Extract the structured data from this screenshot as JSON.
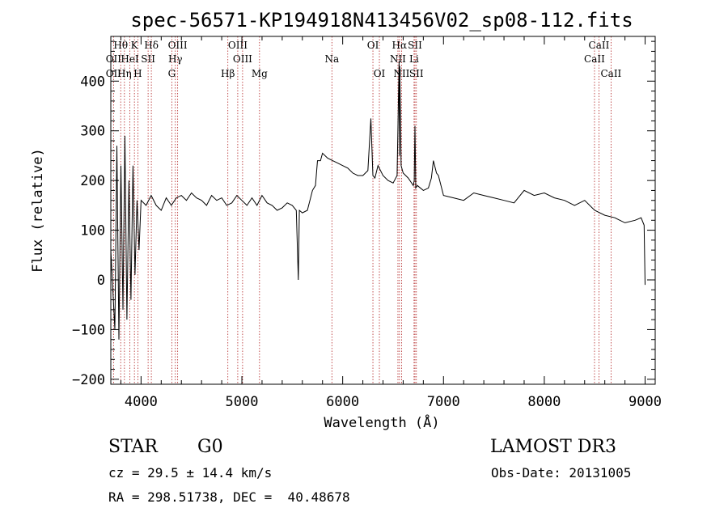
{
  "chart_data": {
    "type": "line",
    "title": "spec-56571-KP194918N413456V02_sp08-112.fits",
    "xlabel": "Wavelength (Å)",
    "ylabel": "Flux (relative)",
    "xlim": [
      3700,
      9100
    ],
    "ylim": [
      -210,
      490
    ],
    "x_ticks": [
      4000,
      5000,
      6000,
      7000,
      8000,
      9000
    ],
    "y_ticks": [
      -200,
      -100,
      0,
      100,
      200,
      300,
      400
    ],
    "grid": false,
    "series": [
      {
        "x": [
          3700,
          3740,
          3760,
          3780,
          3800,
          3820,
          3840,
          3860,
          3880,
          3900,
          3920,
          3940,
          3960,
          3980,
          4000,
          4050,
          4100,
          4150,
          4200,
          4250,
          4300,
          4350,
          4400,
          4450,
          4500,
          4550,
          4600,
          4650,
          4700,
          4750,
          4800,
          4850,
          4900,
          4950,
          5000,
          5050,
          5100,
          5150,
          5200,
          5250,
          5300,
          5350,
          5400,
          5450,
          5500,
          5540,
          5560,
          5570,
          5600,
          5650,
          5700,
          5730,
          5750,
          5780,
          5800,
          5850,
          5900,
          5950,
          6000,
          6050,
          6100,
          6150,
          6200,
          6250,
          6280,
          6300,
          6320,
          6350,
          6400,
          6450,
          6500,
          6540,
          6560,
          6563,
          6566,
          6580,
          6600,
          6650,
          6700,
          6710,
          6717,
          6725,
          6740,
          6800,
          6850,
          6880,
          6900,
          6930,
          6950,
          7000,
          7100,
          7200,
          7300,
          7400,
          7500,
          7600,
          7700,
          7800,
          7900,
          8000,
          8100,
          8200,
          8300,
          8400,
          8500,
          8600,
          8700,
          8800,
          8900,
          8960,
          8990,
          9000
        ],
        "values": [
          60,
          -100,
          270,
          -120,
          230,
          -60,
          290,
          -80,
          200,
          -40,
          230,
          10,
          160,
          60,
          160,
          150,
          170,
          150,
          140,
          165,
          150,
          165,
          170,
          160,
          175,
          165,
          160,
          150,
          170,
          160,
          165,
          150,
          155,
          170,
          160,
          150,
          165,
          150,
          170,
          155,
          150,
          140,
          145,
          155,
          150,
          140,
          0,
          140,
          135,
          140,
          180,
          190,
          240,
          240,
          255,
          245,
          240,
          235,
          230,
          225,
          215,
          210,
          210,
          220,
          325,
          210,
          205,
          230,
          210,
          200,
          195,
          210,
          440,
          250,
          430,
          230,
          215,
          205,
          190,
          200,
          310,
          185,
          190,
          180,
          185,
          205,
          240,
          215,
          210,
          170,
          165,
          160,
          175,
          170,
          165,
          160,
          155,
          180,
          170,
          175,
          165,
          160,
          150,
          160,
          140,
          130,
          125,
          115,
          120,
          125,
          110,
          -10
        ]
      }
    ],
    "spectral_lines": [
      {
        "label": "Hθ",
        "x": 3798,
        "row": 1
      },
      {
        "label": "OII",
        "x": 3727,
        "row": 2
      },
      {
        "label": "OII",
        "x": 3727,
        "row": 3
      },
      {
        "label": "K",
        "x": 3934,
        "row": 1
      },
      {
        "label": "HeI",
        "x": 3889,
        "row": 2
      },
      {
        "label": "Hη",
        "x": 3835,
        "row": 3
      },
      {
        "label": "SII",
        "x": 4070,
        "row": 2
      },
      {
        "label": "H",
        "x": 3968,
        "row": 3
      },
      {
        "label": "Hδ",
        "x": 4102,
        "row": 1
      },
      {
        "label": "OIII",
        "x": 4363,
        "row": 1
      },
      {
        "label": "Hγ",
        "x": 4340,
        "row": 2
      },
      {
        "label": "G",
        "x": 4305,
        "row": 3
      },
      {
        "label": "OIII",
        "x": 4959,
        "row": 1
      },
      {
        "label": "OIII",
        "x": 5007,
        "row": 2
      },
      {
        "label": "Hβ",
        "x": 4861,
        "row": 3
      },
      {
        "label": "Mg",
        "x": 5175,
        "row": 3
      },
      {
        "label": "Na",
        "x": 5893,
        "row": 2
      },
      {
        "label": "OI",
        "x": 6300,
        "row": 1
      },
      {
        "label": "OI",
        "x": 6364,
        "row": 3
      },
      {
        "label": "Hα",
        "x": 6563,
        "row": 1
      },
      {
        "label": "SII",
        "x": 6717,
        "row": 1
      },
      {
        "label": "NII",
        "x": 6548,
        "row": 2
      },
      {
        "label": "Li",
        "x": 6708,
        "row": 2
      },
      {
        "label": "NII",
        "x": 6584,
        "row": 3
      },
      {
        "label": "SII",
        "x": 6731,
        "row": 3
      },
      {
        "label": "CaII",
        "x": 8542,
        "row": 1
      },
      {
        "label": "CaII",
        "x": 8498,
        "row": 2
      },
      {
        "label": "CaII",
        "x": 8662,
        "row": 3
      }
    ]
  },
  "info": {
    "class": "STAR",
    "subclass": "G0",
    "survey": "LAMOST DR3",
    "cz": "cz = 29.5 ± 14.4 km/s",
    "obs_date": "Obs-Date: 20131005",
    "coords": "RA = 298.51738, DEC =  40.48678"
  },
  "colors": {
    "spectrum": "#000000",
    "line_marker": "#b22222"
  }
}
